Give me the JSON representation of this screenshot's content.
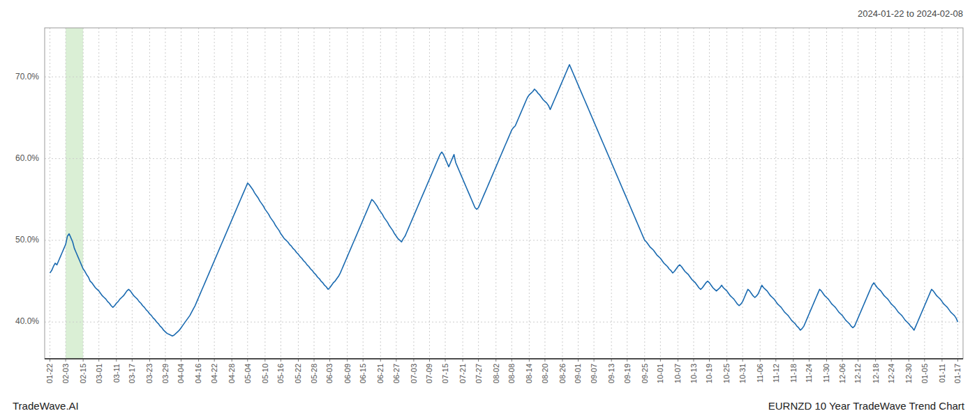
{
  "chart_data": {
    "type": "line",
    "title": "2024-01-22 to 2024-02-08",
    "annotations": [
      "TradeWave.AI",
      "EURNZD 10 Year TradeWave Trend Chart"
    ],
    "color": "#1a6ab0",
    "highlight": {
      "start": 9,
      "end": 19,
      "color": "#daefd5"
    },
    "grid": true,
    "xlim": [
      -3,
      522
    ],
    "ylim": [
      35.5,
      76.0
    ],
    "yticks": [
      {
        "value": 40.0,
        "label": "40.0%"
      },
      {
        "value": 50.0,
        "label": "50.0%"
      },
      {
        "value": 60.0,
        "label": "60.0%"
      },
      {
        "value": 70.0,
        "label": "70.0%"
      }
    ],
    "categories": [
      "01-22",
      null,
      null,
      null,
      null,
      null,
      null,
      null,
      null,
      "02-03",
      null,
      null,
      null,
      null,
      null,
      null,
      null,
      null,
      null,
      "02-15",
      null,
      null,
      null,
      null,
      null,
      null,
      null,
      null,
      "03-01",
      null,
      null,
      null,
      null,
      null,
      null,
      null,
      null,
      null,
      "03-11",
      null,
      null,
      null,
      null,
      null,
      null,
      null,
      null,
      "03-17",
      null,
      null,
      null,
      null,
      null,
      null,
      null,
      null,
      null,
      "03-23",
      null,
      null,
      null,
      null,
      null,
      null,
      null,
      null,
      "03-29",
      null,
      null,
      null,
      null,
      null,
      null,
      null,
      null,
      "04-04",
      null,
      null,
      null,
      null,
      null,
      null,
      null,
      null,
      null,
      "04-16",
      null,
      null,
      null,
      null,
      null,
      null,
      null,
      null,
      "04-22",
      null,
      null,
      null,
      null,
      null,
      null,
      null,
      null,
      null,
      "04-28",
      null,
      null,
      null,
      null,
      null,
      null,
      null,
      null,
      "05-04",
      null,
      null,
      null,
      null,
      null,
      null,
      null,
      null,
      null,
      "05-10",
      null,
      null,
      null,
      null,
      null,
      null,
      null,
      null,
      "05-16",
      null,
      null,
      null,
      null,
      null,
      null,
      null,
      null,
      null,
      "05-22",
      null,
      null,
      null,
      null,
      null,
      null,
      null,
      null,
      "05-28",
      null,
      null,
      null,
      null,
      null,
      null,
      null,
      null,
      "06-03",
      null,
      null,
      null,
      null,
      null,
      null,
      null,
      null,
      null,
      "06-09",
      null,
      null,
      null,
      null,
      null,
      null,
      null,
      null,
      "06-15",
      null,
      null,
      null,
      null,
      null,
      null,
      null,
      null,
      null,
      "06-21",
      null,
      null,
      null,
      null,
      null,
      null,
      null,
      null,
      "06-27",
      null,
      null,
      null,
      null,
      null,
      null,
      null,
      null,
      null,
      "07-03",
      null,
      null,
      null,
      null,
      null,
      null,
      null,
      null,
      "07-09",
      null,
      null,
      null,
      null,
      null,
      null,
      null,
      null,
      "07-15",
      null,
      null,
      null,
      null,
      null,
      null,
      null,
      null,
      null,
      "07-21",
      null,
      null,
      null,
      null,
      null,
      null,
      null,
      null,
      "07-27",
      null,
      null,
      null,
      null,
      null,
      null,
      null,
      null,
      null,
      "08-02",
      null,
      null,
      null,
      null,
      null,
      null,
      null,
      null,
      "08-08",
      null,
      null,
      null,
      null,
      null,
      null,
      null,
      null,
      null,
      "08-14",
      null,
      null,
      null,
      null,
      null,
      null,
      null,
      null,
      "08-20",
      null,
      null,
      null,
      null,
      null,
      null,
      null,
      null,
      null,
      "08-26",
      null,
      null,
      null,
      null,
      null,
      null,
      null,
      null,
      "09-01",
      null,
      null,
      null,
      null,
      null,
      null,
      null,
      null,
      "09-07",
      null,
      null,
      null,
      null,
      null,
      null,
      null,
      null,
      null,
      "09-13",
      null,
      null,
      null,
      null,
      null,
      null,
      null,
      null,
      "09-19",
      null,
      null,
      null,
      null,
      null,
      null,
      null,
      null,
      null,
      "09-25",
      null,
      null,
      null,
      null,
      null,
      null,
      null,
      null,
      "10-01",
      null,
      null,
      null,
      null,
      null,
      null,
      null,
      null,
      null,
      "10-07",
      null,
      null,
      null,
      null,
      null,
      null,
      null,
      null,
      "10-13",
      null,
      null,
      null,
      null,
      null,
      null,
      null,
      null,
      "10-19",
      null,
      null,
      null,
      null,
      null,
      null,
      null,
      null,
      null,
      "10-25",
      null,
      null,
      null,
      null,
      null,
      null,
      null,
      null,
      "10-31",
      null,
      null,
      null,
      null,
      null,
      null,
      null,
      null,
      null,
      "11-06",
      null,
      null,
      null,
      null,
      null,
      null,
      null,
      null,
      "11-12",
      null,
      null,
      null,
      null,
      null,
      null,
      null,
      null,
      null,
      "11-18",
      null,
      null,
      null,
      null,
      null,
      null,
      null,
      null,
      "11-24",
      null,
      null,
      null,
      null,
      null,
      null,
      null,
      null,
      null,
      "11-30",
      null,
      null,
      null,
      null,
      null,
      null,
      null,
      null,
      "12-06",
      null,
      null,
      null,
      null,
      null,
      null,
      null,
      null,
      "12-12",
      null,
      null,
      null,
      null,
      null,
      null,
      null,
      null,
      null,
      "12-18",
      null,
      null,
      null,
      null,
      null,
      null,
      null,
      null,
      "12-24",
      null,
      null,
      null,
      null,
      null,
      null,
      null,
      null,
      null,
      "12-30",
      null,
      null,
      null,
      null,
      null,
      null,
      null,
      null,
      "01-05",
      null,
      null,
      null,
      null,
      null,
      null,
      null,
      null,
      null,
      "01-11",
      null,
      null,
      null,
      null,
      null,
      null,
      null,
      null,
      "01-17"
    ],
    "values": [
      46.0,
      46.3,
      46.8,
      47.2,
      47.0,
      47.5,
      48.0,
      48.5,
      49.0,
      49.5,
      50.5,
      50.8,
      50.3,
      49.8,
      49.0,
      48.5,
      48.0,
      47.5,
      47.0,
      46.5,
      46.2,
      45.8,
      45.5,
      45.0,
      44.8,
      44.5,
      44.2,
      44.0,
      43.8,
      43.5,
      43.2,
      43.0,
      42.8,
      42.5,
      42.3,
      42.0,
      41.8,
      42.0,
      42.3,
      42.5,
      42.8,
      43.0,
      43.2,
      43.5,
      43.8,
      44.0,
      43.8,
      43.5,
      43.2,
      43.0,
      42.8,
      42.5,
      42.3,
      42.0,
      41.8,
      41.5,
      41.3,
      41.0,
      40.8,
      40.5,
      40.3,
      40.0,
      39.8,
      39.5,
      39.3,
      39.0,
      38.8,
      38.6,
      38.5,
      38.4,
      38.3,
      38.4,
      38.6,
      38.8,
      39.0,
      39.3,
      39.6,
      39.9,
      40.2,
      40.5,
      40.8,
      41.2,
      41.6,
      42.0,
      42.5,
      43.0,
      43.5,
      44.0,
      44.5,
      45.0,
      45.5,
      46.0,
      46.5,
      47.0,
      47.5,
      48.0,
      48.5,
      49.0,
      49.5,
      50.0,
      50.5,
      51.0,
      51.5,
      52.0,
      52.5,
      53.0,
      53.5,
      54.0,
      54.5,
      55.0,
      55.5,
      56.0,
      56.5,
      57.0,
      56.8,
      56.5,
      56.2,
      55.8,
      55.5,
      55.2,
      54.8,
      54.5,
      54.2,
      53.8,
      53.5,
      53.2,
      52.8,
      52.5,
      52.2,
      51.8,
      51.5,
      51.2,
      50.8,
      50.5,
      50.2,
      50.0,
      49.8,
      49.5,
      49.3,
      49.0,
      48.8,
      48.5,
      48.3,
      48.0,
      47.8,
      47.5,
      47.3,
      47.0,
      46.8,
      46.5,
      46.3,
      46.0,
      45.8,
      45.5,
      45.3,
      45.0,
      44.8,
      44.5,
      44.3,
      44.0,
      44.2,
      44.5,
      44.8,
      45.0,
      45.3,
      45.6,
      46.0,
      46.5,
      47.0,
      47.5,
      48.0,
      48.5,
      49.0,
      49.5,
      50.0,
      50.5,
      51.0,
      51.5,
      52.0,
      52.5,
      53.0,
      53.5,
      54.0,
      54.5,
      55.0,
      54.8,
      54.5,
      54.2,
      53.8,
      53.5,
      53.2,
      52.8,
      52.5,
      52.2,
      51.8,
      51.5,
      51.2,
      50.8,
      50.5,
      50.2,
      50.0,
      49.8,
      50.2,
      50.5,
      51.0,
      51.5,
      52.0,
      52.5,
      53.0,
      53.5,
      54.0,
      54.5,
      55.0,
      55.5,
      56.0,
      56.5,
      57.0,
      57.5,
      58.0,
      58.5,
      59.0,
      59.5,
      60.0,
      60.5,
      60.8,
      60.5,
      60.0,
      59.5,
      59.0,
      59.5,
      60.0,
      60.5,
      59.5,
      59.0,
      58.5,
      58.0,
      57.5,
      57.0,
      56.5,
      56.0,
      55.5,
      55.0,
      54.5,
      54.0,
      53.8,
      54.0,
      54.5,
      55.0,
      55.5,
      56.0,
      56.5,
      57.0,
      57.5,
      58.0,
      58.5,
      59.0,
      59.5,
      60.0,
      60.5,
      61.0,
      61.5,
      62.0,
      62.5,
      63.0,
      63.5,
      63.8,
      64.0,
      64.5,
      65.0,
      65.5,
      66.0,
      66.5,
      67.0,
      67.5,
      67.8,
      68.0,
      68.2,
      68.5,
      68.3,
      68.0,
      67.8,
      67.5,
      67.2,
      67.0,
      66.8,
      66.5,
      66.0,
      66.5,
      67.0,
      67.5,
      68.0,
      68.5,
      69.0,
      69.5,
      70.0,
      70.5,
      71.0,
      71.5,
      71.0,
      70.5,
      70.0,
      69.5,
      69.0,
      68.5,
      68.0,
      67.5,
      67.0,
      66.5,
      66.0,
      65.5,
      65.0,
      64.5,
      64.0,
      63.5,
      63.0,
      62.5,
      62.0,
      61.5,
      61.0,
      60.5,
      60.0,
      59.5,
      59.0,
      58.5,
      58.0,
      57.5,
      57.0,
      56.5,
      56.0,
      55.5,
      55.0,
      54.5,
      54.0,
      53.5,
      53.0,
      52.5,
      52.0,
      51.5,
      51.0,
      50.5,
      50.0,
      49.8,
      49.5,
      49.2,
      49.0,
      48.8,
      48.5,
      48.2,
      48.0,
      47.8,
      47.5,
      47.2,
      47.0,
      46.8,
      46.5,
      46.3,
      46.0,
      46.2,
      46.5,
      46.8,
      47.0,
      46.8,
      46.5,
      46.2,
      46.0,
      45.8,
      45.5,
      45.2,
      45.0,
      44.8,
      44.5,
      44.2,
      44.0,
      44.2,
      44.5,
      44.8,
      45.0,
      44.8,
      44.5,
      44.2,
      44.0,
      43.8,
      44.0,
      44.2,
      44.5,
      44.2,
      44.0,
      43.8,
      43.5,
      43.2,
      43.0,
      42.8,
      42.5,
      42.2,
      42.0,
      42.2,
      42.5,
      43.0,
      43.5,
      44.0,
      43.8,
      43.5,
      43.2,
      43.0,
      43.2,
      43.5,
      44.0,
      44.5,
      44.2,
      44.0,
      43.8,
      43.5,
      43.2,
      43.0,
      42.8,
      42.5,
      42.2,
      42.0,
      41.8,
      41.5,
      41.2,
      41.0,
      40.8,
      40.5,
      40.2,
      40.0,
      39.8,
      39.5,
      39.3,
      39.0,
      39.2,
      39.5,
      40.0,
      40.5,
      41.0,
      41.5,
      42.0,
      42.5,
      43.0,
      43.5,
      44.0,
      43.8,
      43.5,
      43.2,
      43.0,
      42.8,
      42.5,
      42.2,
      42.0,
      41.8,
      41.5,
      41.2,
      41.0,
      40.8,
      40.5,
      40.2,
      40.0,
      39.8,
      39.5,
      39.3,
      39.5,
      40.0,
      40.5,
      41.0,
      41.5,
      42.0,
      42.5,
      43.0,
      43.5,
      44.0,
      44.5,
      44.8,
      44.5,
      44.2,
      44.0,
      43.8,
      43.5,
      43.2,
      43.0,
      42.8,
      42.5,
      42.2,
      42.0,
      41.8,
      41.5,
      41.2,
      41.0,
      40.8,
      40.5,
      40.2,
      40.0,
      39.8,
      39.5,
      39.3,
      39.0,
      39.5,
      40.0,
      40.5,
      41.0,
      41.5,
      42.0,
      42.5,
      43.0,
      43.5,
      44.0,
      43.8,
      43.5,
      43.2,
      43.0,
      42.8,
      42.5,
      42.2,
      42.0,
      41.8,
      41.5,
      41.2,
      41.0,
      40.8,
      40.5,
      40.0
    ]
  }
}
